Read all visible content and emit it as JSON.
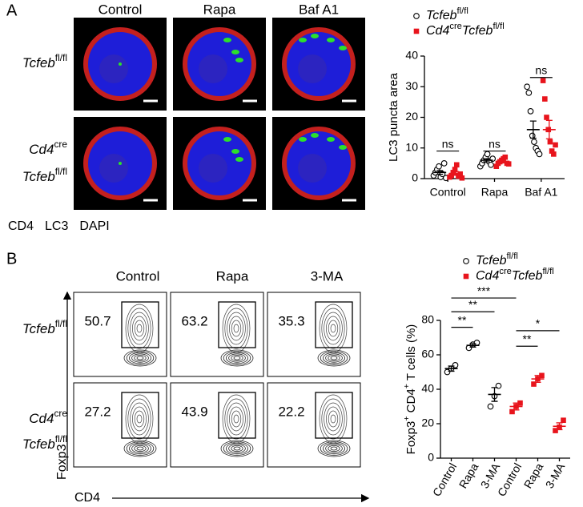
{
  "panel_a": {
    "label": "A",
    "columns": [
      "Control",
      "Rapa",
      "Baf A1"
    ],
    "rows": [
      [
        [
          "Tcfeb",
          "fl/fl"
        ]
      ],
      [
        [
          "Cd4",
          "cre"
        ],
        [
          "Tcfeb",
          "fl/fl"
        ]
      ]
    ],
    "stain_legend": [
      {
        "text": "CD4",
        "color": "#e8141c"
      },
      {
        "text": "LC3",
        "color": "#1fb21f"
      },
      {
        "text": "DAPI",
        "color": "#1a1adb"
      }
    ]
  },
  "panel_b": {
    "label": "B",
    "columns": [
      "Control",
      "Rapa",
      "3-MA"
    ],
    "rows": [
      [
        [
          "Tcfeb",
          "fl/fl"
        ]
      ],
      [
        [
          "Cd4",
          "cre"
        ],
        [
          "Tcfeb",
          "fl/fl"
        ]
      ]
    ],
    "gate_values": [
      [
        50.7,
        63.2,
        35.3
      ],
      [
        27.2,
        43.9,
        22.2
      ]
    ],
    "y_axis_label": "Foxp3",
    "x_axis_label": "CD4"
  },
  "chart_data": [
    {
      "type": "dot",
      "ylabel": [
        "LC3 puncta area"
      ],
      "categories": [
        "Control",
        "Rapa",
        "Baf A1"
      ],
      "ylim": [
        0,
        40
      ],
      "yticks": [
        0,
        10,
        20,
        30,
        40
      ],
      "series": [
        {
          "name": [
            "Tcfeb",
            "fl/fl"
          ],
          "marker": "circle",
          "color": "#000000",
          "values": [
            [
              1,
              2,
              3,
              4,
              0.5,
              1.5,
              5,
              0.2
            ],
            [
              4,
              5,
              6,
              7,
              8,
              5.5,
              4.5,
              6.5
            ],
            [
              30,
              28,
              22,
              14,
              12,
              10,
              9,
              8
            ]
          ],
          "means": [
            2,
            6,
            16
          ],
          "errors": [
            0.6,
            0.5,
            2.8
          ]
        },
        {
          "name": [
            "Cd4",
            "cre",
            "Tcfeb",
            "fl/fl"
          ],
          "marker": "square",
          "color": "#e8141c",
          "values": [
            [
              0.5,
              1,
              2,
              3,
              4.5,
              0.8,
              1.5,
              0.2
            ],
            [
              4,
              5,
              5.5,
              6,
              6.5,
              7,
              5,
              4.8
            ],
            [
              32,
              26,
              20,
              16,
              12,
              9,
              8,
              11
            ]
          ],
          "means": [
            1.7,
            5.5,
            16
          ],
          "errors": [
            0.6,
            0.4,
            3
          ]
        }
      ],
      "annotations": [
        {
          "text": "ns",
          "categories": [
            0,
            0
          ],
          "y": 9
        },
        {
          "text": "ns",
          "categories": [
            1,
            1
          ],
          "y": 9
        },
        {
          "text": "ns",
          "categories": [
            2,
            2
          ],
          "y": 33
        }
      ]
    },
    {
      "type": "dot",
      "ylabel": [
        "Foxp3",
        "+",
        " CD4",
        "+",
        " T cells (%)"
      ],
      "categories": [
        "Control",
        "Rapa",
        "3-MA",
        "Control",
        "Rapa",
        "3-MA"
      ],
      "ylim": [
        0,
        80
      ],
      "yticks": [
        0,
        20,
        40,
        60,
        80
      ],
      "series": [
        {
          "name": [
            "Tcfeb",
            "fl/fl"
          ],
          "marker": "circle",
          "color": "#000000",
          "values": [
            [
              50,
              52,
              54
            ],
            [
              64,
              66,
              67
            ],
            [
              30,
              36,
              42
            ],
            null,
            null,
            null
          ],
          "means": [
            52,
            65.5,
            37,
            null,
            null,
            null
          ],
          "errors": [
            1.5,
            1,
            4,
            null,
            null,
            null
          ]
        },
        {
          "name": [
            "Cd4",
            "cre",
            "Tcfeb",
            "fl/fl"
          ],
          "marker": "square",
          "color": "#e8141c",
          "values": [
            null,
            null,
            null,
            [
              27,
              30,
              32
            ],
            [
              43,
              46,
              48
            ],
            [
              16,
              18,
              22
            ]
          ],
          "means": [
            null,
            null,
            null,
            30,
            46,
            18.5
          ],
          "errors": [
            null,
            null,
            null,
            2,
            2,
            2
          ]
        }
      ],
      "annotations": [
        {
          "text": "***",
          "categories": [
            0,
            3
          ],
          "y": 93
        },
        {
          "text": "**",
          "categories": [
            0,
            2
          ],
          "y": 85
        },
        {
          "text": "**",
          "categories": [
            0,
            1
          ],
          "y": 76
        },
        {
          "text": "*",
          "categories": [
            3,
            5
          ],
          "y": 74
        },
        {
          "text": "**",
          "categories": [
            3,
            4
          ],
          "y": 65
        }
      ]
    }
  ]
}
